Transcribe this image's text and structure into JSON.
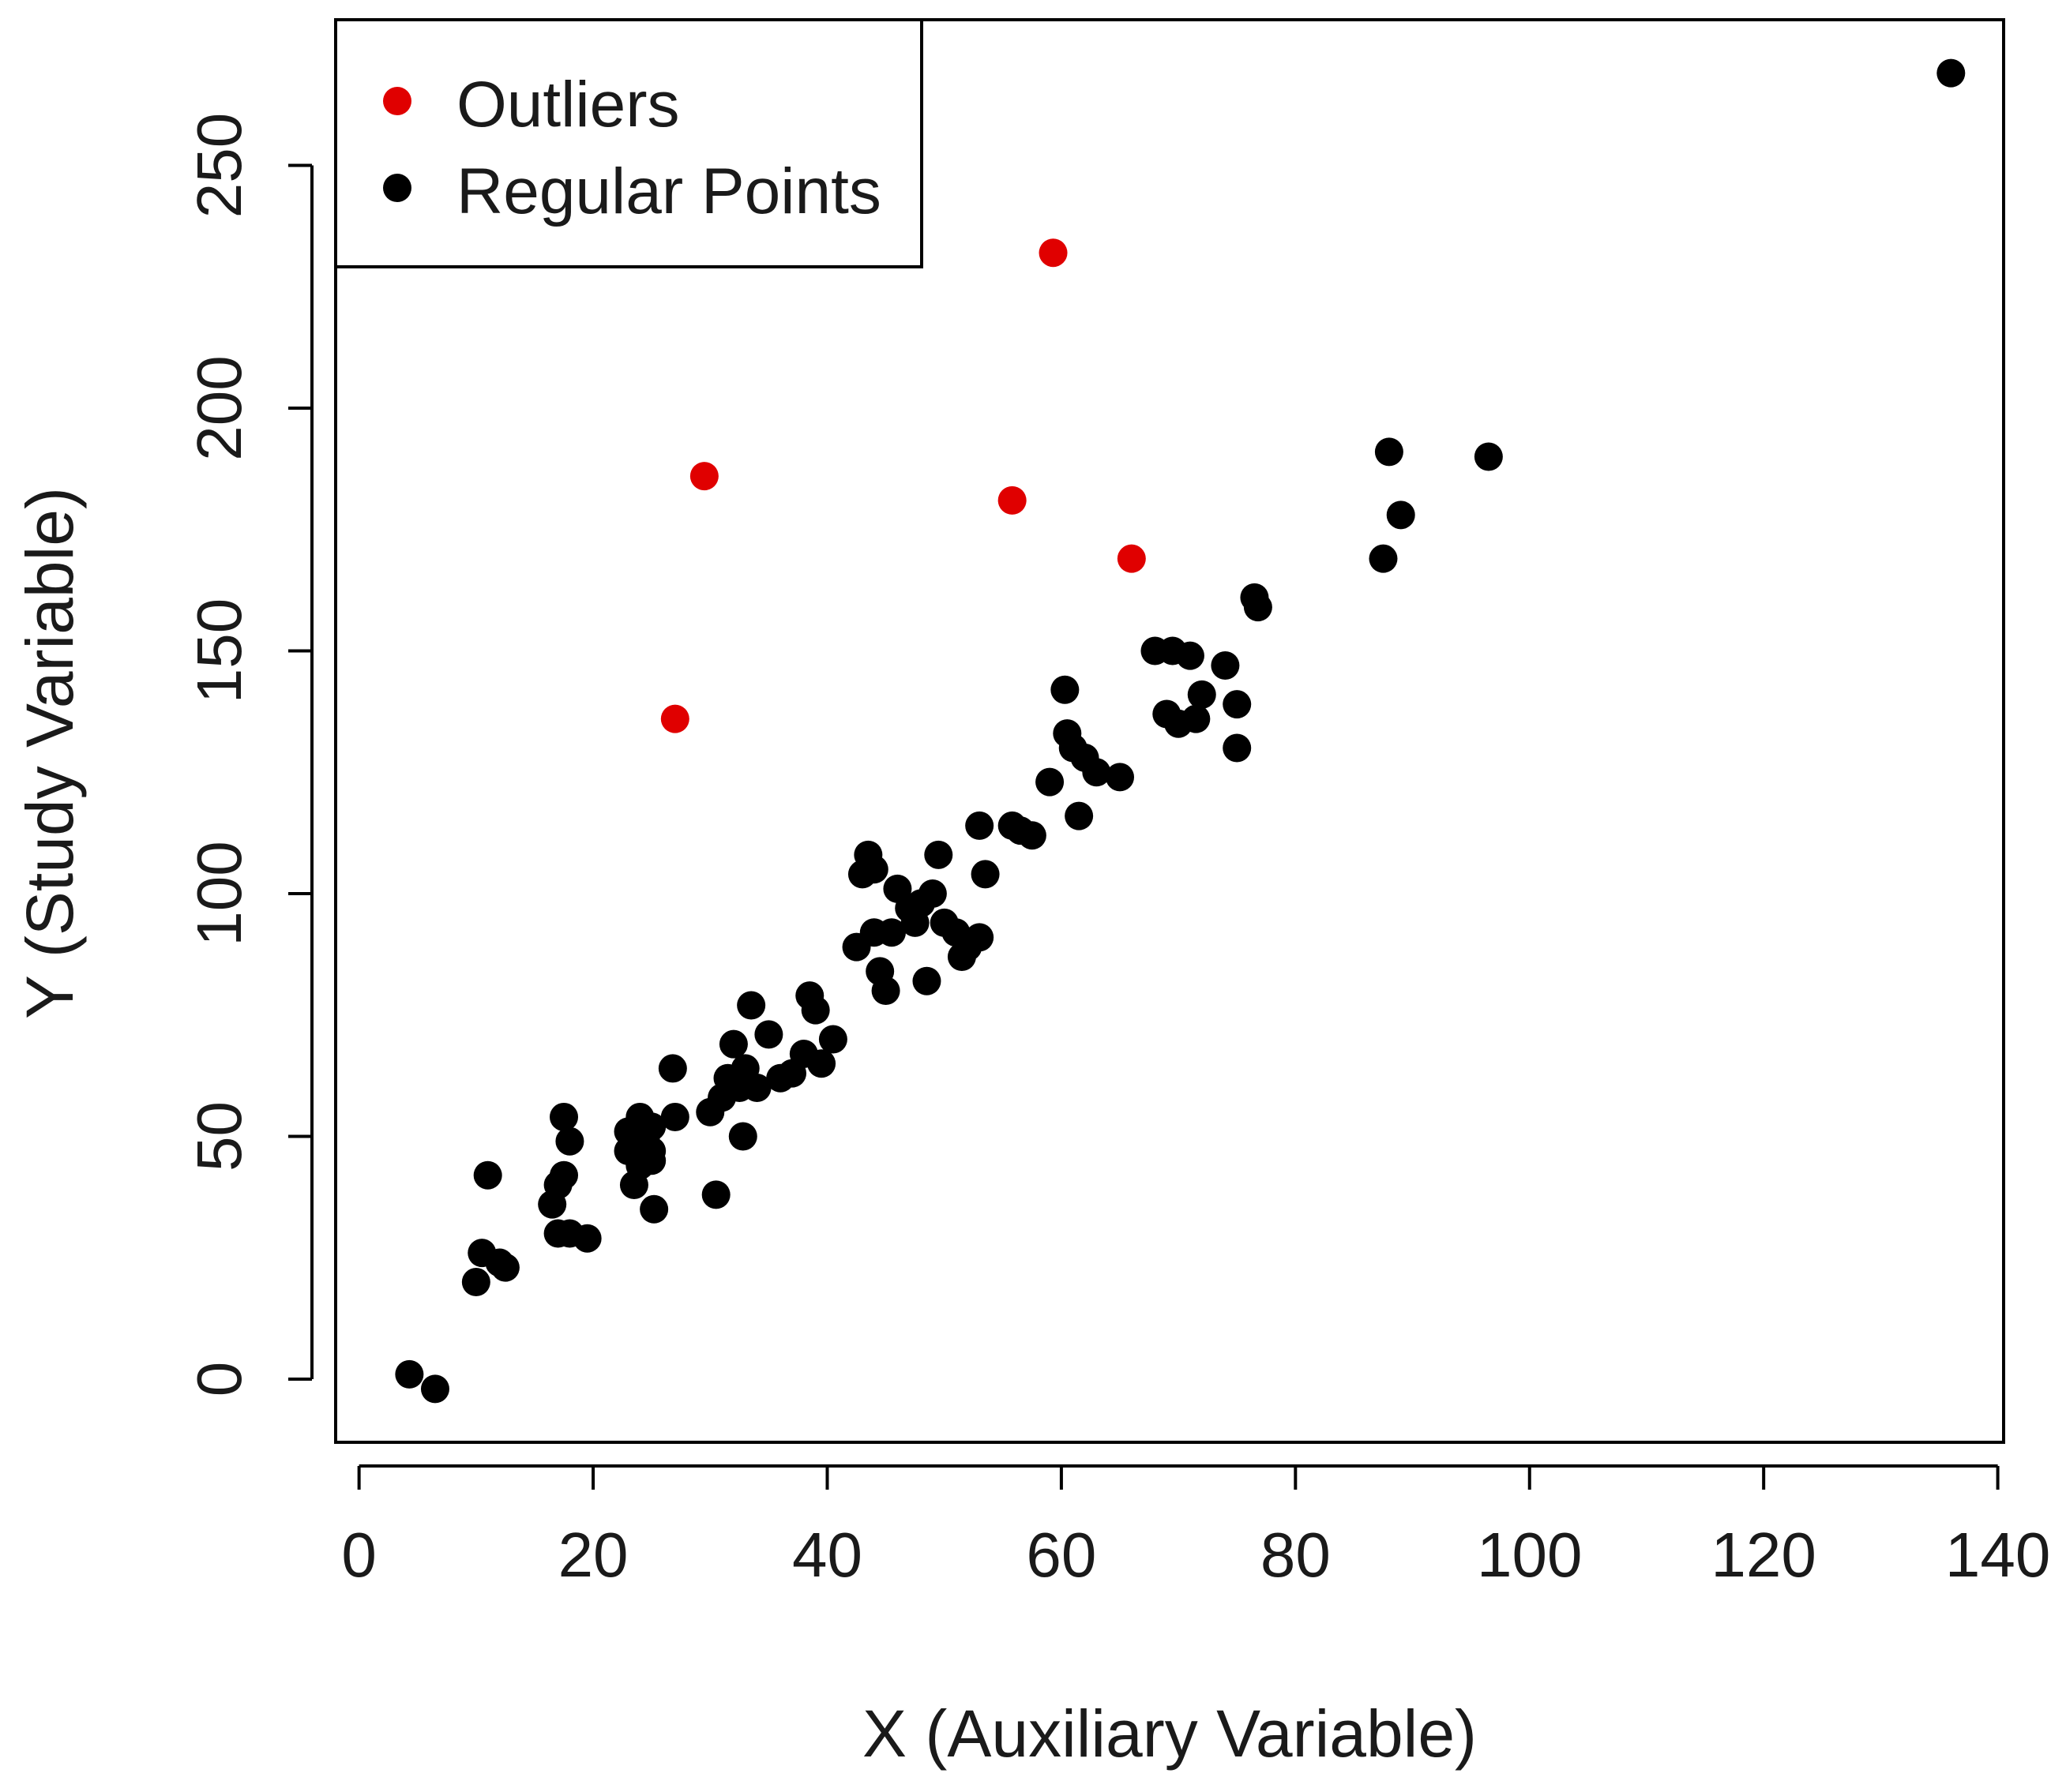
{
  "chart_data": {
    "type": "scatter",
    "title": "",
    "xlabel": "X (Auxiliary Variable)",
    "ylabel": "Y (Study Variable)",
    "xlim": [
      -2,
      140.5
    ],
    "ylim": [
      -13,
      280
    ],
    "x_ticks": [
      0,
      20,
      40,
      60,
      80,
      100,
      120,
      140
    ],
    "y_ticks": [
      0,
      50,
      100,
      150,
      200,
      250
    ],
    "grid": false,
    "legend": {
      "position": "top-left",
      "entries": [
        {
          "label": "Outliers",
          "color": "#e00000"
        },
        {
          "label": "Regular Points",
          "color": "#000000"
        }
      ]
    },
    "series": [
      {
        "name": "Outliers",
        "color": "#e00000",
        "points": [
          [
            27,
            136
          ],
          [
            29.5,
            186
          ],
          [
            55.8,
            181
          ],
          [
            59.3,
            232
          ],
          [
            66,
            169
          ]
        ]
      },
      {
        "name": "Regular Points",
        "color": "#000000",
        "points": [
          [
            4.3,
            1
          ],
          [
            6.5,
            -2
          ],
          [
            10,
            20
          ],
          [
            10.5,
            26
          ],
          [
            11,
            42
          ],
          [
            12,
            24
          ],
          [
            12.5,
            23
          ],
          [
            16.5,
            36
          ],
          [
            17,
            40
          ],
          [
            17,
            30
          ],
          [
            17.5,
            42
          ],
          [
            17.5,
            54
          ],
          [
            18,
            49
          ],
          [
            18,
            30
          ],
          [
            19.5,
            29
          ],
          [
            23,
            51
          ],
          [
            23,
            47
          ],
          [
            23.5,
            40
          ],
          [
            24,
            54
          ],
          [
            24,
            44
          ],
          [
            24.5,
            50
          ],
          [
            25,
            52
          ],
          [
            25,
            47
          ],
          [
            25,
            45
          ],
          [
            25.2,
            35
          ],
          [
            26.8,
            64
          ],
          [
            27,
            54
          ],
          [
            30,
            55
          ],
          [
            30.5,
            38
          ],
          [
            31,
            58
          ],
          [
            31.5,
            62
          ],
          [
            32,
            69
          ],
          [
            32.5,
            60
          ],
          [
            32.8,
            50
          ],
          [
            33,
            64
          ],
          [
            33.5,
            77
          ],
          [
            34,
            60
          ],
          [
            35,
            71
          ],
          [
            36,
            62
          ],
          [
            37,
            63
          ],
          [
            38,
            67
          ],
          [
            38.5,
            79
          ],
          [
            39,
            76
          ],
          [
            39.5,
            65
          ],
          [
            40.5,
            70
          ],
          [
            42.5,
            89
          ],
          [
            43,
            104
          ],
          [
            43.5,
            108
          ],
          [
            44,
            105
          ],
          [
            44,
            92
          ],
          [
            44.5,
            84
          ],
          [
            45,
            80
          ],
          [
            45.5,
            92
          ],
          [
            46,
            101
          ],
          [
            47,
            97
          ],
          [
            47.5,
            94
          ],
          [
            48,
            98
          ],
          [
            48.5,
            82
          ],
          [
            49,
            100
          ],
          [
            49.5,
            108
          ],
          [
            50,
            94
          ],
          [
            51,
            92
          ],
          [
            51.5,
            87
          ],
          [
            52,
            89
          ],
          [
            53,
            91
          ],
          [
            53,
            114
          ],
          [
            53.5,
            104
          ],
          [
            55.8,
            114
          ],
          [
            56.5,
            113
          ],
          [
            57.5,
            112
          ],
          [
            59,
            123
          ],
          [
            60.3,
            142
          ],
          [
            60.5,
            133
          ],
          [
            61,
            130
          ],
          [
            61.5,
            116
          ],
          [
            62,
            128
          ],
          [
            63,
            125
          ],
          [
            65,
            124
          ],
          [
            68,
            150
          ],
          [
            69,
            137
          ],
          [
            69.5,
            150
          ],
          [
            70,
            135
          ],
          [
            71,
            149
          ],
          [
            71.5,
            136
          ],
          [
            72,
            141
          ],
          [
            74,
            147
          ],
          [
            75,
            139
          ],
          [
            75,
            130
          ],
          [
            76.5,
            161
          ],
          [
            76.8,
            159
          ],
          [
            87.5,
            169
          ],
          [
            88,
            191
          ],
          [
            89,
            178
          ],
          [
            96.5,
            190
          ],
          [
            136,
            269
          ]
        ]
      }
    ]
  }
}
